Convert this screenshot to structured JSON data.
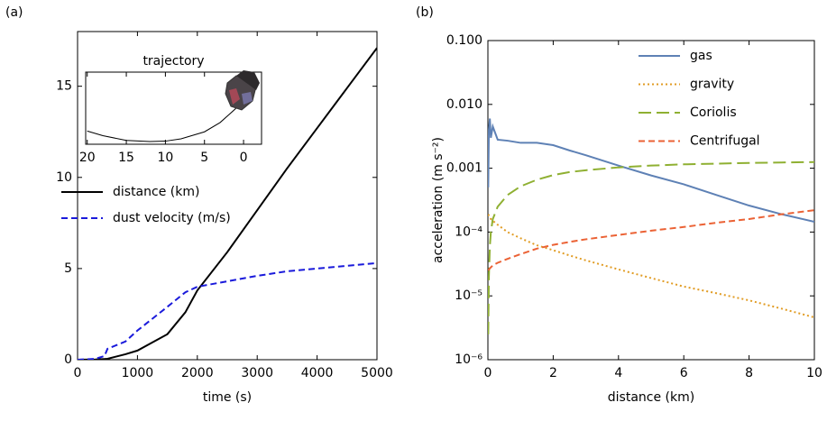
{
  "chart_data": [
    {
      "type": "line",
      "panel_label": "(a)",
      "xlabel": "time (s)",
      "x": [
        0,
        300,
        450,
        500,
        800,
        1000,
        1500,
        1800,
        2000,
        2500,
        3000,
        3500,
        4000,
        4500,
        5000
      ],
      "series": [
        {
          "name": "distance (km)",
          "color": "#000000",
          "dash": "solid",
          "values": [
            0,
            0.01,
            0.04,
            0.05,
            0.3,
            0.5,
            1.4,
            2.6,
            3.8,
            5.9,
            8.2,
            10.5,
            12.7,
            14.9,
            17.1
          ]
        },
        {
          "name": "dust velocity (m/s)",
          "color": "#1a1adb",
          "dash": "dashed",
          "values": [
            0,
            0.05,
            0.2,
            0.6,
            1.0,
            1.6,
            2.9,
            3.7,
            4.0,
            4.3,
            4.6,
            4.85,
            5.0,
            5.15,
            5.3
          ]
        }
      ],
      "xlim": [
        0,
        5000
      ],
      "xticks": [
        0,
        1000,
        2000,
        3000,
        4000,
        5000
      ],
      "ylim": [
        0,
        18
      ],
      "yticks": [
        0,
        5,
        10,
        15
      ],
      "legend": "left"
    },
    {
      "type": "line",
      "title": "trajectory",
      "x": [
        20,
        18,
        15,
        12,
        10,
        8,
        5,
        3,
        1,
        0
      ],
      "series": [
        {
          "color": "#000000",
          "dash": "solid",
          "values": [
            1.7,
            1.1,
            0.5,
            0.35,
            0.4,
            0.7,
            1.6,
            2.8,
            4.6,
            6.0
          ]
        }
      ],
      "xlim": [
        20.2,
        -2.3
      ],
      "xticks": [
        20,
        15,
        10,
        5,
        0
      ],
      "ylim": [
        0,
        9.3
      ]
    },
    {
      "type": "line",
      "panel_label": "(b)",
      "xlabel": "distance (km)",
      "ylabel": "acceleration (m s⁻²)",
      "log_y": true,
      "x": [
        0.01,
        0.03,
        0.06,
        0.09,
        0.15,
        0.3,
        0.6,
        1,
        1.5,
        2,
        2.5,
        3,
        4,
        5,
        6,
        7,
        8,
        9,
        10
      ],
      "series": [
        {
          "name": "gas",
          "color": "#5e81b5",
          "dash": "solid",
          "values": [
            0.0005,
            0.004,
            0.006,
            0.003,
            0.0045,
            0.0028,
            0.0027,
            0.0025,
            0.0025,
            0.0023,
            0.0019,
            0.0016,
            0.0011,
            0.00077,
            0.00056,
            0.00038,
            0.00026,
            0.00019,
            0.000145
          ]
        },
        {
          "name": "gravity",
          "color": "#e19c24",
          "dash": "dotted",
          "values": [
            0.00019,
            0.00018,
            0.00017,
            0.00016,
            0.00015,
            0.00013,
            0.0001,
            8e-05,
            6.2e-05,
            5.2e-05,
            4.3e-05,
            3.6e-05,
            2.6e-05,
            1.9e-05,
            1.4e-05,
            1.1e-05,
            8.5e-06,
            6.3e-06,
            4.6e-06
          ]
        },
        {
          "name": "Coriolis",
          "color": "#8fb032",
          "dash": "long-dashed",
          "values": [
            2.5e-06,
            2e-05,
            6e-05,
            0.0001,
            0.00016,
            0.00025,
            0.00038,
            0.00052,
            0.00066,
            0.00078,
            0.00087,
            0.00093,
            0.00103,
            0.0011,
            0.00115,
            0.00118,
            0.00121,
            0.00123,
            0.00125
          ]
        },
        {
          "name": "Centrifugal",
          "color": "#eb6235",
          "dash": "dashed",
          "values": [
            2.5e-05,
            2.6e-05,
            2.7e-05,
            2.8e-05,
            3e-05,
            3.3e-05,
            3.8e-05,
            4.5e-05,
            5.5e-05,
            6.3e-05,
            7e-05,
            7.7e-05,
            9e-05,
            0.000105,
            0.00012,
            0.00014,
            0.00016,
            0.00019,
            0.00022
          ]
        }
      ],
      "xlim": [
        0,
        10
      ],
      "xticks": [
        0,
        2,
        4,
        6,
        8,
        10
      ],
      "ylim": [
        1e-06,
        0.1
      ],
      "yticks": [
        {
          "value": 1e-06,
          "label": "10⁻⁶"
        },
        {
          "value": 1e-05,
          "label": "10⁻⁵"
        },
        {
          "value": 0.0001,
          "label": "10⁻⁴"
        },
        {
          "value": 0.001,
          "label": "0.001"
        },
        {
          "value": 0.01,
          "label": "0.010"
        },
        {
          "value": 0.1,
          "label": "0.100"
        }
      ],
      "legend": "upper right"
    }
  ]
}
